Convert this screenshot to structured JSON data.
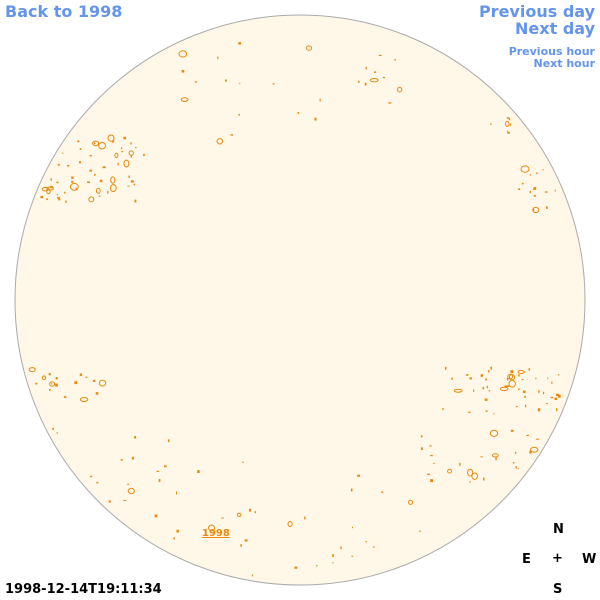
{
  "nav": {
    "back_label": "Back to 1998",
    "previous_day_label": "Previous day",
    "next_day_label": "Next day",
    "previous_hour_label": "Previous hour",
    "next_hour_label": "Next hour"
  },
  "compass": {
    "north": "N",
    "east": "E",
    "center": "+",
    "west": "W",
    "south": "S"
  },
  "timestamp": "1998-12-14T19:11:34",
  "year_marker": "1998",
  "colors": {
    "link": "#6495ED",
    "disk_fill": "#fff8e8",
    "disk_stroke": "#aaaaaa",
    "feature": "#e8890c"
  }
}
